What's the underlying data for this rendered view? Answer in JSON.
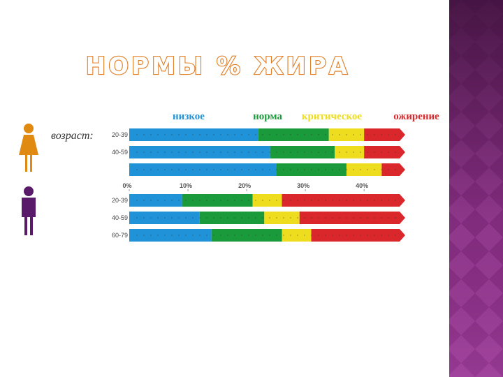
{
  "chart_data": {
    "type": "bar",
    "orientation": "horizontal",
    "stacked": true,
    "title": "НОРМЫ % ЖИРА",
    "y_label": "возраст:",
    "categories": [
      "20-39",
      "40-59",
      null,
      "20-39",
      "40-59",
      "60-79"
    ],
    "series": [
      {
        "name": "низкое",
        "color": "#1f92d8",
        "values": [
          22,
          24,
          25,
          9,
          12,
          14
        ]
      },
      {
        "name": "норма",
        "color": "#1b9a3c",
        "values": [
          12,
          11,
          12,
          12,
          11,
          12
        ]
      },
      {
        "name": "критическое",
        "color": "#eedc1e",
        "values": [
          6,
          5,
          6,
          5,
          6,
          5
        ]
      },
      {
        "name": "ожирение",
        "color": "#d9272b",
        "values": [
          7,
          7,
          4,
          21,
          18,
          16
        ]
      }
    ],
    "xlim": [
      0,
      47
    ],
    "xticks": [
      {
        "value": 0,
        "label": "0%"
      },
      {
        "value": 10,
        "label": "10%"
      },
      {
        "value": 20,
        "label": "20%"
      },
      {
        "value": 30,
        "label": "30%"
      },
      {
        "value": 40,
        "label": "40%"
      }
    ]
  }
}
